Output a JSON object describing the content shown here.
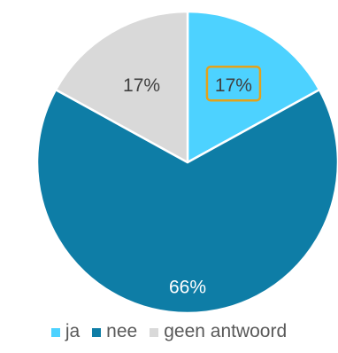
{
  "chart_data": {
    "type": "pie",
    "categories": [
      "ja",
      "nee",
      "geen antwoord"
    ],
    "values": [
      17,
      66,
      17
    ],
    "data_labels": [
      "17%",
      "66%",
      "17%"
    ],
    "colors": [
      "#4dd2ff",
      "#0e7da6",
      "#d9d9d9"
    ],
    "label_colors": [
      "#404040",
      "#ffffff",
      "#404040"
    ],
    "highlighted_label": {
      "category": "ja",
      "border_color": "#e3a21a"
    },
    "legend_position": "bottom",
    "title": ""
  }
}
